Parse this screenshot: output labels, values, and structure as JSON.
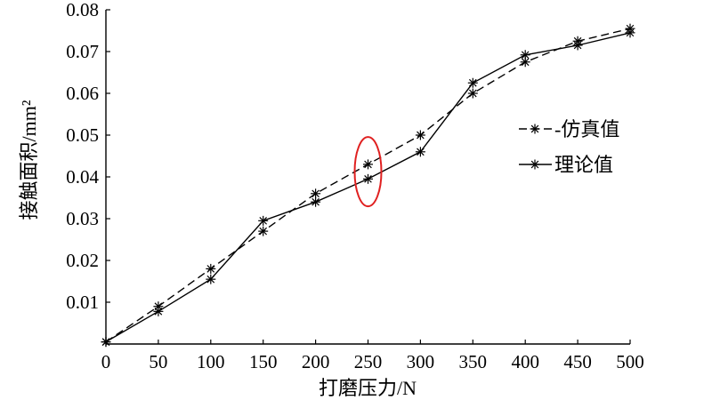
{
  "chart_data": {
    "type": "line",
    "title": "",
    "xlabel": "打磨压力/N",
    "ylabel": "接触面积/mm²",
    "xlim": [
      0,
      500
    ],
    "ylim": [
      0,
      0.08
    ],
    "x_ticks": [
      0,
      50,
      100,
      150,
      200,
      250,
      300,
      350,
      400,
      450,
      500
    ],
    "x_tick_labels": [
      "0",
      "50",
      "100",
      "150",
      "200",
      "250",
      "300",
      "350",
      "400",
      "450",
      "500"
    ],
    "y_ticks": [
      0.01,
      0.02,
      0.03,
      0.04,
      0.05,
      0.06,
      0.07,
      0.08
    ],
    "y_tick_labels": [
      "0.01",
      "0.02",
      "0.03",
      "0.04",
      "0.05",
      "0.06",
      "0.07",
      "0.08"
    ],
    "grid": false,
    "legend_position": "right",
    "x": [
      0,
      50,
      100,
      150,
      200,
      250,
      300,
      350,
      400,
      450,
      500
    ],
    "series": [
      {
        "name": "仿真值",
        "style": "dashed",
        "marker": "asterisk",
        "color": "#000000",
        "values": [
          0.0005,
          0.009,
          0.018,
          0.027,
          0.036,
          0.043,
          0.05,
          0.06,
          0.0675,
          0.0725,
          0.0755
        ]
      },
      {
        "name": "理论值",
        "style": "solid",
        "marker": "asterisk",
        "color": "#000000",
        "values": [
          0.0005,
          0.0078,
          0.0155,
          0.0295,
          0.034,
          0.0395,
          0.046,
          0.0625,
          0.0692,
          0.0715,
          0.0745
        ]
      }
    ],
    "highlight": {
      "shape": "ellipse",
      "color": "#e02020",
      "x": 250,
      "y_range": [
        0.0395,
        0.043
      ]
    }
  }
}
